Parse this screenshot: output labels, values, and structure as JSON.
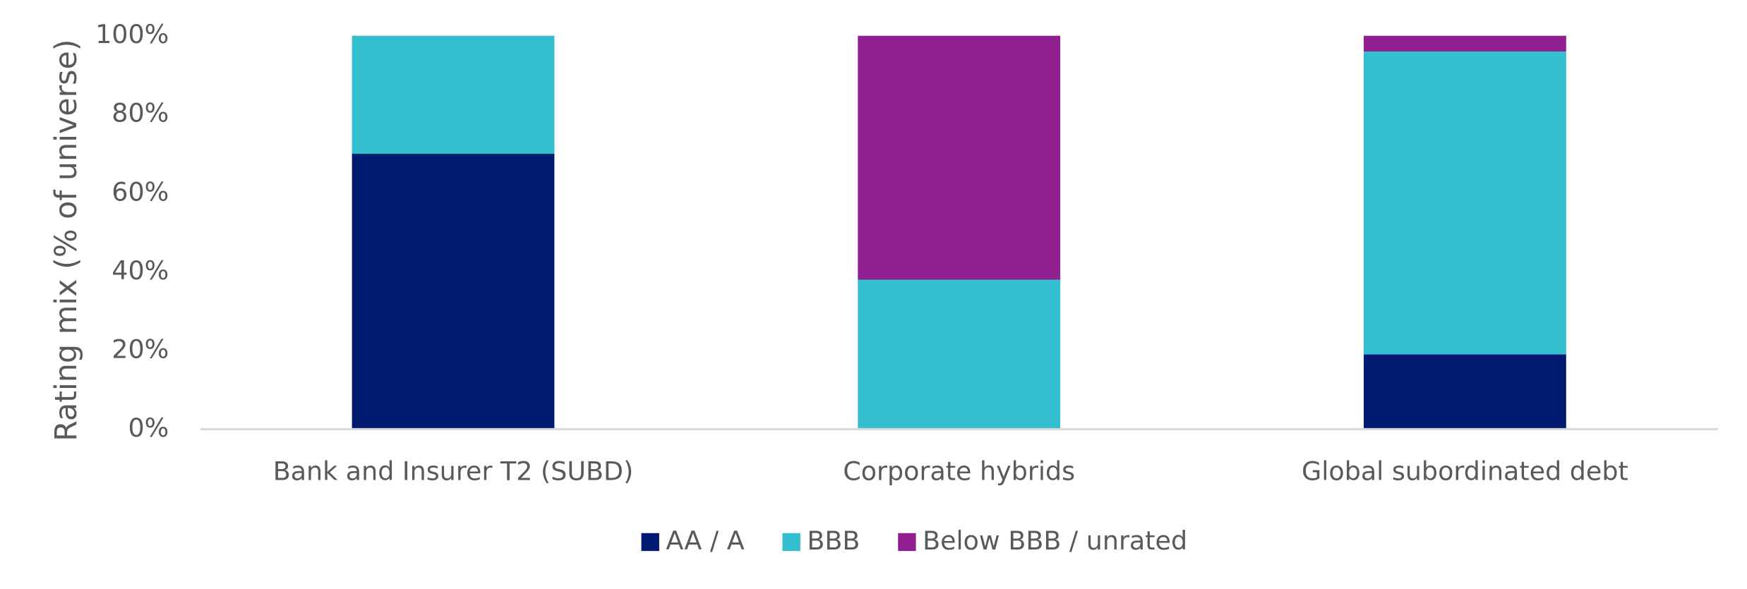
{
  "chart_data": {
    "type": "stacked-bar",
    "y_label": "Rating mix (% of universe)",
    "categories": [
      "Bank and Insurer T2 (SUBD)",
      "Corporate hybrids",
      "Global subordinated debt"
    ],
    "series": [
      {
        "name": "AA / A",
        "color": "#001a72",
        "values": [
          70,
          0,
          19
        ]
      },
      {
        "name": "BBB",
        "color": "#33bfcf",
        "values": [
          30,
          38,
          77
        ]
      },
      {
        "name": "Below BBB / unrated",
        "color": "#921f8f",
        "values": [
          0,
          62,
          4
        ]
      }
    ],
    "ylim": [
      0,
      100
    ],
    "yticks": [
      {
        "value": 0,
        "label": "0%"
      },
      {
        "value": 20,
        "label": "20%"
      },
      {
        "value": 40,
        "label": "40%"
      },
      {
        "value": 60,
        "label": "60%"
      },
      {
        "value": 80,
        "label": "80%"
      },
      {
        "value": 100,
        "label": "100%"
      }
    ],
    "grid": false,
    "legend": "bottom"
  }
}
